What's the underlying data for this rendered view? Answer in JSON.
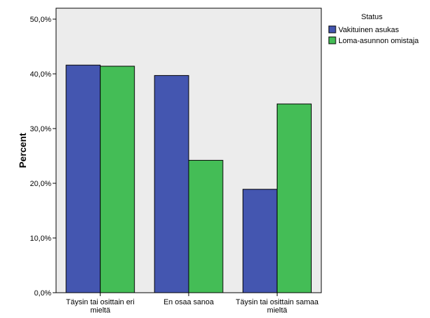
{
  "chart_data": {
    "type": "bar",
    "title": "",
    "xlabel": "",
    "ylabel": "Percent",
    "ylim": [
      0,
      52
    ],
    "yticks": [
      "0,0%",
      "10,0%",
      "20,0%",
      "30,0%",
      "40,0%",
      "50,0%"
    ],
    "ytick_values": [
      0,
      10,
      20,
      30,
      40,
      50
    ],
    "categories": [
      [
        "Täysin tai osittain eri",
        "mieltä"
      ],
      [
        "En osaa sanoa"
      ],
      [
        "Täysin tai osittain samaa",
        "mieltä"
      ]
    ],
    "legend_title": "Status",
    "legend_position": "top-right, outside plot",
    "grid": false,
    "plot_background": "#ececec",
    "series": [
      {
        "name": "Vakituinen asukas",
        "color": "#4456b0",
        "values": [
          41.6,
          39.7,
          18.9
        ]
      },
      {
        "name": "Loma-asunnon omistaja",
        "color": "#44bd56",
        "values": [
          41.4,
          24.2,
          34.5
        ]
      }
    ]
  }
}
